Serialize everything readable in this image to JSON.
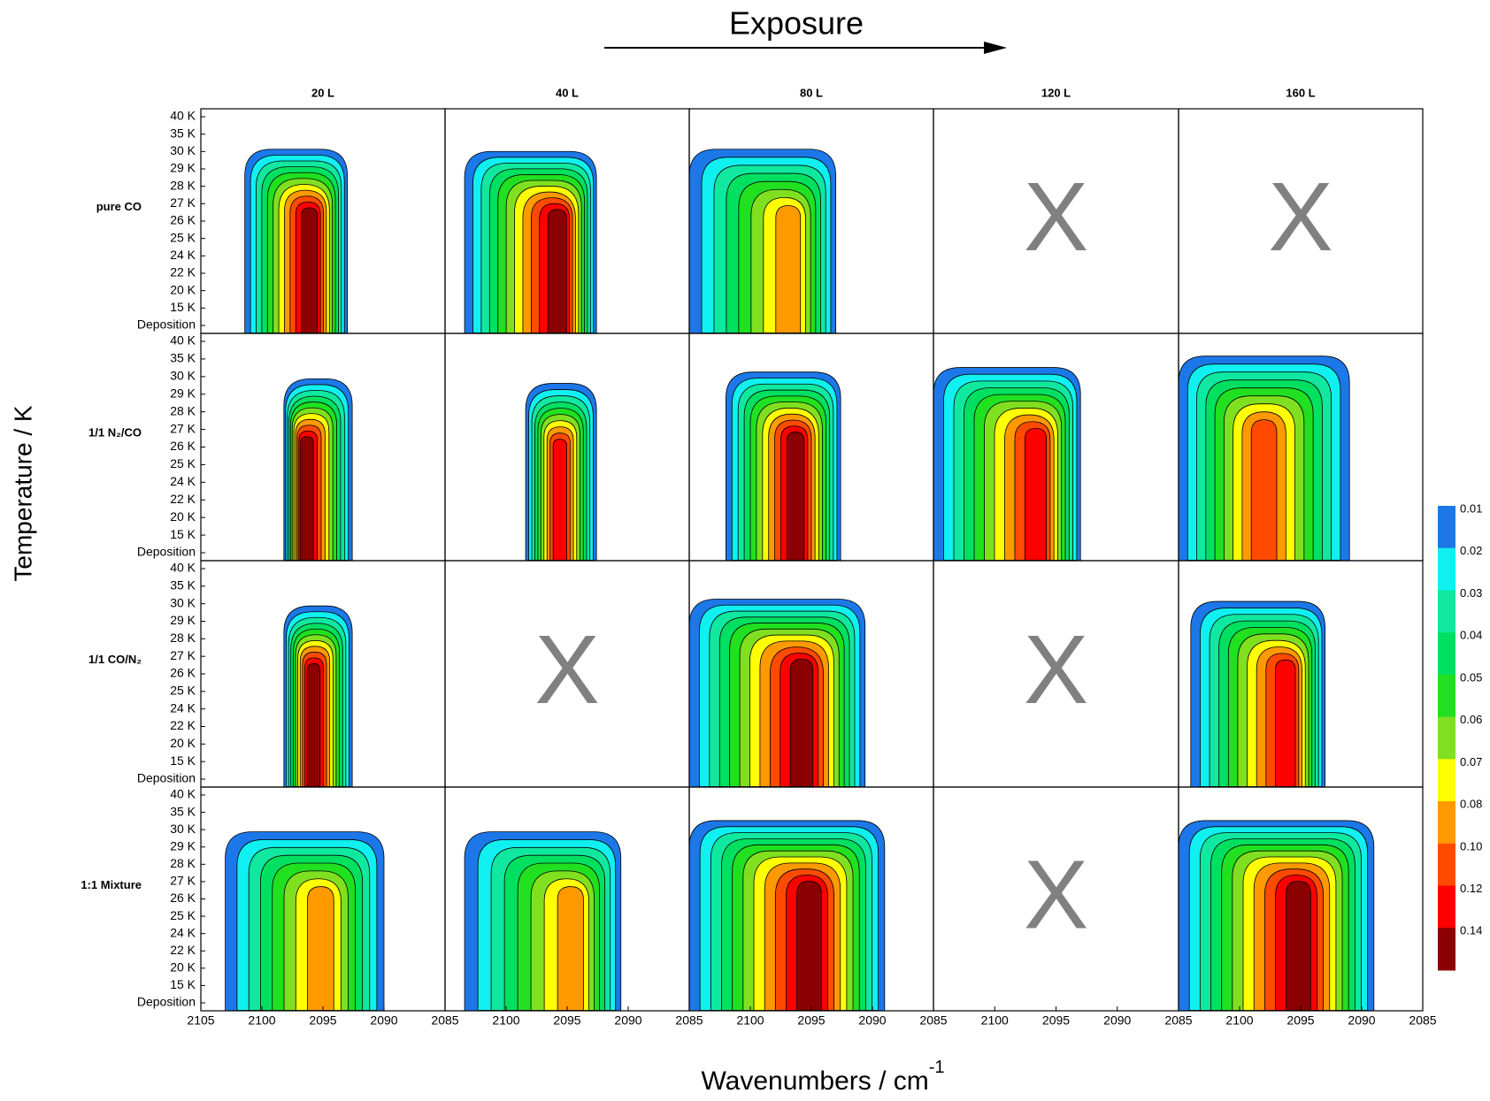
{
  "chart_data": {
    "type": "contour",
    "title": "Exposure",
    "x_label": "Wavenumbers / cm",
    "x_label_superscript": "-1",
    "y_label": "Temperature / K",
    "columns": [
      "20 L",
      "40 L",
      "80 L",
      "120 L",
      "160 L"
    ],
    "rows": [
      "pure CO",
      "1/1 N₂/CO",
      "1/1 CO/N₂",
      "1:1 Mixture"
    ],
    "y_categories": [
      "40 K",
      "35 K",
      "30 K",
      "29 K",
      "28 K",
      "27 K",
      "26 K",
      "25 K",
      "24 K",
      "22 K",
      "20 K",
      "15 K",
      "Deposition"
    ],
    "xlim": [
      2105,
      2085
    ],
    "xticks": [
      2105,
      2100,
      2095,
      2090,
      2085
    ],
    "missing": [
      {
        "row": 0,
        "col": 3,
        "label": "X"
      },
      {
        "row": 0,
        "col": 4,
        "label": "X"
      },
      {
        "row": 2,
        "col": 1,
        "label": "X"
      },
      {
        "row": 2,
        "col": 3,
        "label": "X"
      },
      {
        "row": 3,
        "col": 3,
        "label": "X"
      }
    ],
    "colorbar": {
      "levels": [
        0.01,
        0.02,
        0.03,
        0.04,
        0.05,
        0.06,
        0.07,
        0.08,
        {
          "value": 0.1,
          "label": "0.10"
        },
        0.12,
        0.14
      ],
      "colors": [
        "#1c78e8",
        "#10f0f0",
        "#10e8a0",
        "#00e060",
        "#20e020",
        "#80e020",
        "#ffff00",
        "#ff9900",
        "#ff4a00",
        "#ff0000",
        "#8b0000"
      ]
    }
  }
}
